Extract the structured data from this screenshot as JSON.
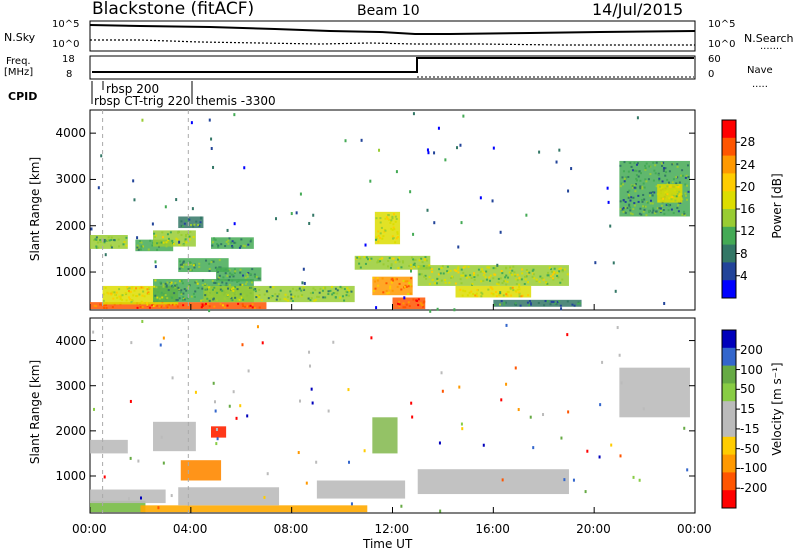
{
  "header": {
    "title": "Blackstone (fitACF)",
    "beam": "Beam 10",
    "date": "14/Jul/2015"
  },
  "side_labels": {
    "nsky": "N.Sky",
    "freq": "Freq.",
    "freq_unit": "[MHz]",
    "cpid": "CPID",
    "nsearch": "N.Search",
    "nave": "Nave"
  },
  "cpid_labels": [
    "rbsp 200",
    "rbsp CT-trig 220",
    "themis -3300"
  ],
  "top_axes": {
    "nsky_ticks": [
      "10^5",
      "10^0"
    ],
    "nsearch_ticks": [
      "10^5",
      "10^0"
    ],
    "freq_ticks": [
      "18",
      "8"
    ],
    "nave_ticks": [
      "60",
      "0"
    ]
  },
  "chart_data": [
    {
      "type": "heatmap",
      "panel": "power",
      "ylabel": "Slant Range [km]",
      "ylim": [
        180,
        4500
      ],
      "yticks": [
        1000,
        2000,
        3000,
        4000
      ],
      "colorbar_label": "Power [dB]",
      "colorbar_ticks": [
        "28",
        "24",
        "20",
        "16",
        "12",
        "8",
        "4"
      ],
      "colorbar_colors": [
        "#ff0000",
        "#ff5500",
        "#ff9900",
        "#ffcc00",
        "#dddd00",
        "#99cc33",
        "#44aa55",
        "#337766",
        "#224499",
        "#0000ff"
      ],
      "regions": [
        {
          "t0": 0.0,
          "t1": 7.0,
          "r0": 200,
          "r1": 350,
          "level": 0.88
        },
        {
          "t0": 0.5,
          "t1": 3.5,
          "r0": 300,
          "r1": 700,
          "level": 0.6
        },
        {
          "t0": 2.5,
          "t1": 6.5,
          "r0": 350,
          "r1": 850,
          "level": 0.35
        },
        {
          "t0": 4.5,
          "t1": 10.5,
          "r0": 350,
          "r1": 700,
          "level": 0.4
        },
        {
          "t0": 0.0,
          "t1": 1.5,
          "r0": 1500,
          "r1": 1800,
          "level": 0.4
        },
        {
          "t0": 1.8,
          "t1": 3.3,
          "r0": 1450,
          "r1": 1700,
          "level": 0.38
        },
        {
          "t0": 2.5,
          "t1": 4.2,
          "r0": 1550,
          "r1": 1900,
          "level": 0.45
        },
        {
          "t0": 3.5,
          "t1": 4.5,
          "r0": 1950,
          "r1": 2200,
          "level": 0.25
        },
        {
          "t0": 3.5,
          "t1": 5.5,
          "r0": 1000,
          "r1": 1300,
          "level": 0.35
        },
        {
          "t0": 4.8,
          "t1": 6.5,
          "r0": 1500,
          "r1": 1750,
          "level": 0.3
        },
        {
          "t0": 5.0,
          "t1": 6.8,
          "r0": 800,
          "r1": 1100,
          "level": 0.3
        },
        {
          "t0": 11.2,
          "t1": 12.8,
          "r0": 500,
          "r1": 900,
          "level": 0.75
        },
        {
          "t0": 12.0,
          "t1": 13.3,
          "r0": 200,
          "r1": 450,
          "level": 0.9
        },
        {
          "t0": 13.0,
          "t1": 19.0,
          "r0": 700,
          "r1": 1150,
          "level": 0.5
        },
        {
          "t0": 14.5,
          "t1": 17.5,
          "r0": 450,
          "r1": 700,
          "level": 0.6
        },
        {
          "t0": 10.5,
          "t1": 13.5,
          "r0": 1050,
          "r1": 1350,
          "level": 0.45
        },
        {
          "t0": 11.3,
          "t1": 12.3,
          "r0": 1600,
          "r1": 2300,
          "level": 0.55
        },
        {
          "t0": 16.0,
          "t1": 19.5,
          "r0": 250,
          "r1": 400,
          "level": 0.25
        },
        {
          "t0": 21.0,
          "t1": 23.8,
          "r0": 2200,
          "r1": 3400,
          "level": 0.3
        },
        {
          "t0": 22.5,
          "t1": 23.5,
          "r0": 2500,
          "r1": 2900,
          "level": 0.55
        }
      ]
    },
    {
      "type": "heatmap",
      "panel": "velocity",
      "ylabel": "Slant Range [km]",
      "xlabel": "Time UT",
      "ylim": [
        180,
        4500
      ],
      "yticks": [
        1000,
        2000,
        3000,
        4000
      ],
      "xticks": [
        "00:00",
        "04:00",
        "08:00",
        "12:00",
        "16:00",
        "20:00",
        "00:00"
      ],
      "xlim": [
        0,
        24
      ],
      "colorbar_label": "Velocity [m s⁻¹]",
      "colorbar_ticks": [
        "200",
        "100",
        "50",
        "15",
        "-15",
        "-50",
        "-100",
        "-200"
      ],
      "colorbar_colors": [
        "#0000bb",
        "#3366cc",
        "#66aa44",
        "#88cc44",
        "#bbbbbb",
        "#bbbbbb",
        "#ffcc00",
        "#ff9900",
        "#ff5500",
        "#ff0000"
      ],
      "regions": [
        {
          "t0": 0.0,
          "t1": 2.2,
          "r0": 200,
          "r1": 450,
          "color": "#77bb44"
        },
        {
          "t0": 0.0,
          "t1": 3.0,
          "r0": 400,
          "r1": 700,
          "color": "#bbbbbb"
        },
        {
          "t0": 2.0,
          "t1": 11.0,
          "r0": 200,
          "r1": 350,
          "color": "#ffaa00"
        },
        {
          "t0": 3.5,
          "t1": 7.5,
          "r0": 350,
          "r1": 750,
          "color": "#bbbbbb"
        },
        {
          "t0": 3.6,
          "t1": 5.2,
          "r0": 900,
          "r1": 1350,
          "color": "#ff8800"
        },
        {
          "t0": 0.0,
          "t1": 1.5,
          "r0": 1500,
          "r1": 1800,
          "color": "#bbbbbb"
        },
        {
          "t0": 2.5,
          "t1": 4.2,
          "r0": 1550,
          "r1": 2200,
          "color": "#bbbbbb"
        },
        {
          "t0": 4.8,
          "t1": 5.4,
          "r0": 1850,
          "r1": 2100,
          "color": "#ff2200"
        },
        {
          "t0": 9.0,
          "t1": 12.5,
          "r0": 500,
          "r1": 900,
          "color": "#bbbbbb"
        },
        {
          "t0": 13.0,
          "t1": 19.0,
          "r0": 600,
          "r1": 1150,
          "color": "#bbbbbb"
        },
        {
          "t0": 11.2,
          "t1": 12.2,
          "r0": 1500,
          "r1": 2300,
          "color": "#88bb55"
        },
        {
          "t0": 21.0,
          "t1": 23.8,
          "r0": 2300,
          "r1": 3400,
          "color": "#bbbbbb"
        }
      ]
    }
  ]
}
